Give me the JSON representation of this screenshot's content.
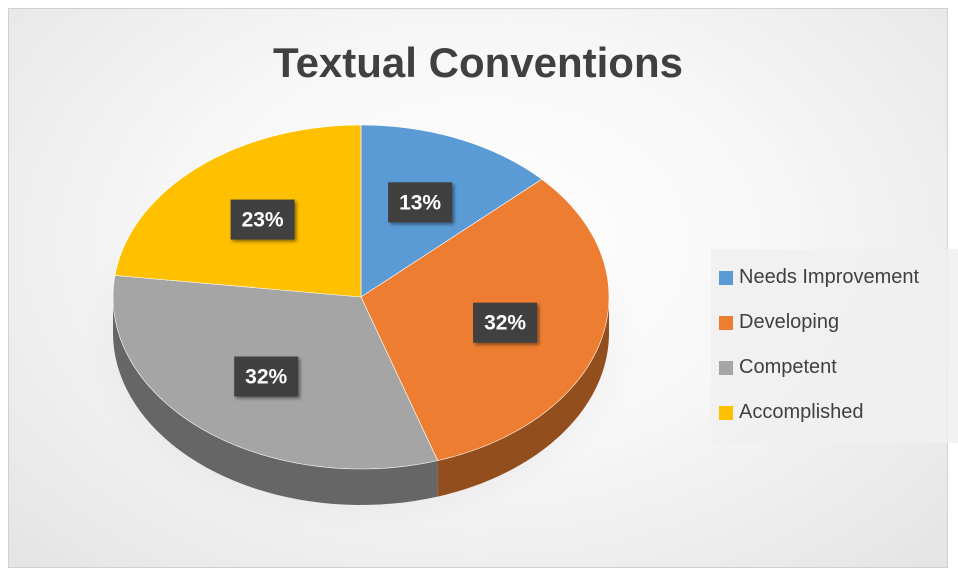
{
  "chart_data": {
    "type": "pie",
    "title": "Textual Conventions",
    "categories": [
      "Needs Improvement",
      "Developing",
      "Competent",
      "Accomplished"
    ],
    "values": [
      13,
      32,
      32,
      23
    ],
    "data_labels": [
      "13%",
      "32%",
      "32%",
      "23%"
    ],
    "colors": [
      "#5B9BD5",
      "#ED7D31",
      "#A5A5A5",
      "#FFC000"
    ],
    "legend": {
      "placement": "right",
      "entries": [
        "Needs Improvement",
        "Developing",
        "Competent",
        "Accomplished"
      ]
    },
    "style": "3d-pie"
  }
}
